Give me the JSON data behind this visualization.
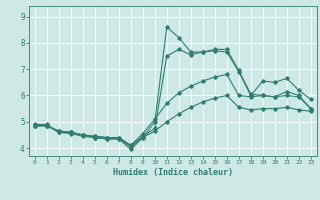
{
  "title": "",
  "xlabel": "Humidex (Indice chaleur)",
  "ylabel": "",
  "bg_color": "#cde8e5",
  "line_color": "#2e7d72",
  "grid_color": "#ffffff",
  "xlim": [
    -0.5,
    23.5
  ],
  "ylim": [
    3.7,
    9.4
  ],
  "xticks": [
    0,
    1,
    2,
    3,
    4,
    5,
    6,
    7,
    8,
    9,
    10,
    11,
    12,
    13,
    14,
    15,
    16,
    17,
    18,
    19,
    20,
    21,
    22,
    23
  ],
  "yticks": [
    4,
    5,
    6,
    7,
    8,
    9
  ],
  "lines": [
    {
      "x": [
        0,
        1,
        2,
        3,
        4,
        5,
        6,
        7,
        8,
        9,
        10,
        11,
        12,
        13,
        14,
        15,
        16,
        17,
        18,
        19,
        20,
        21,
        22,
        23
      ],
      "y": [
        4.9,
        4.9,
        4.6,
        4.6,
        4.5,
        4.4,
        4.35,
        4.35,
        3.95,
        4.4,
        5.0,
        8.6,
        8.2,
        7.65,
        7.65,
        7.7,
        7.65,
        6.9,
        6.0,
        6.55,
        6.5,
        6.65,
        6.2,
        5.85
      ]
    },
    {
      "x": [
        0,
        1,
        2,
        3,
        4,
        5,
        6,
        7,
        8,
        9,
        10,
        11,
        12,
        13,
        14,
        15,
        16,
        17,
        18,
        19,
        20,
        21,
        22,
        23
      ],
      "y": [
        4.85,
        4.85,
        4.65,
        4.6,
        4.5,
        4.45,
        4.4,
        4.4,
        4.1,
        4.45,
        4.75,
        7.5,
        7.75,
        7.55,
        7.65,
        7.75,
        7.75,
        6.95,
        6.05,
        6.0,
        5.95,
        6.15,
        6.0,
        5.5
      ]
    },
    {
      "x": [
        0,
        1,
        2,
        3,
        4,
        5,
        6,
        7,
        8,
        9,
        10,
        11,
        12,
        13,
        14,
        15,
        16,
        17,
        18,
        19,
        20,
        21,
        22,
        23
      ],
      "y": [
        4.85,
        4.85,
        4.65,
        4.6,
        4.5,
        4.45,
        4.4,
        4.4,
        4.1,
        4.55,
        5.1,
        5.7,
        6.1,
        6.35,
        6.55,
        6.7,
        6.8,
        6.0,
        5.95,
        6.0,
        5.95,
        6.0,
        5.95,
        5.5
      ]
    },
    {
      "x": [
        0,
        1,
        2,
        3,
        4,
        5,
        6,
        7,
        8,
        9,
        10,
        11,
        12,
        13,
        14,
        15,
        16,
        17,
        18,
        19,
        20,
        21,
        22,
        23
      ],
      "y": [
        4.85,
        4.85,
        4.6,
        4.55,
        4.45,
        4.4,
        4.35,
        4.35,
        4.05,
        4.4,
        4.65,
        5.0,
        5.3,
        5.55,
        5.75,
        5.9,
        6.0,
        5.55,
        5.45,
        5.5,
        5.5,
        5.55,
        5.45,
        5.4
      ]
    }
  ]
}
